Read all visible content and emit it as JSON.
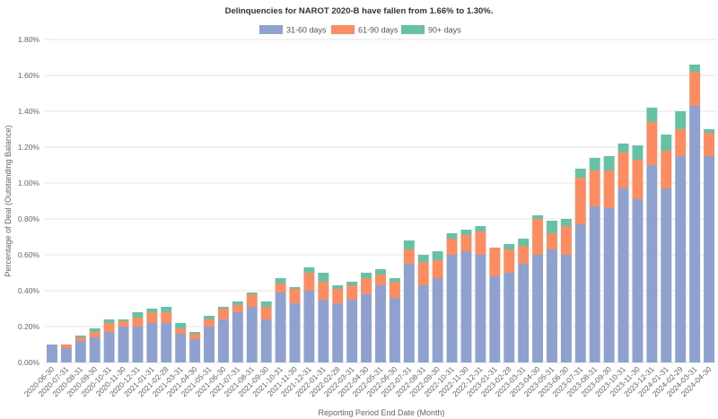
{
  "chart_data": {
    "type": "bar",
    "stacked": true,
    "title": "Delinquencies for NAROT 2020-B have fallen from 1.66% to 1.30%.",
    "xlabel": "Reporting Period End Date (Month)",
    "ylabel": "Percentage of Deal (Outstanding Balance)",
    "ylim": [
      0,
      1.8
    ],
    "yticks": [
      "0.00%",
      "0.20%",
      "0.40%",
      "0.60%",
      "0.80%",
      "1.00%",
      "1.20%",
      "1.40%",
      "1.60%",
      "1.80%"
    ],
    "grid": true,
    "legend_position": "top-center",
    "categories": [
      "2020-06-30",
      "2020-07-31",
      "2020-08-31",
      "2020-09-30",
      "2020-10-31",
      "2020-11-30",
      "2020-12-31",
      "2021-01-31",
      "2021-02-28",
      "2021-03-31",
      "2021-04-30",
      "2021-05-31",
      "2021-06-30",
      "2021-07-31",
      "2021-08-31",
      "2021-09-30",
      "2021-10-31",
      "2021-11-30",
      "2021-12-31",
      "2022-01-31",
      "2022-02-28",
      "2022-03-31",
      "2022-04-30",
      "2022-05-31",
      "2022-06-30",
      "2022-07-31",
      "2022-08-31",
      "2022-09-30",
      "2022-10-31",
      "2022-11-30",
      "2022-12-31",
      "2023-01-31",
      "2023-02-28",
      "2023-03-31",
      "2023-04-30",
      "2023-05-31",
      "2023-06-30",
      "2023-07-31",
      "2023-08-31",
      "2023-09-30",
      "2023-10-31",
      "2023-11-30",
      "2023-12-31",
      "2024-01-31",
      "2024-02-29",
      "2024-03-31",
      "2024-04-30"
    ],
    "series": [
      {
        "name": "31-60 days",
        "color": "#8fa2cf",
        "values": [
          0.1,
          0.08,
          0.12,
          0.14,
          0.17,
          0.2,
          0.2,
          0.22,
          0.22,
          0.16,
          0.13,
          0.2,
          0.24,
          0.28,
          0.31,
          0.24,
          0.39,
          0.33,
          0.4,
          0.35,
          0.33,
          0.35,
          0.38,
          0.43,
          0.36,
          0.55,
          0.43,
          0.47,
          0.6,
          0.62,
          0.6,
          0.48,
          0.5,
          0.55,
          0.6,
          0.63,
          0.6,
          0.77,
          0.87,
          0.86,
          0.97,
          0.91,
          1.1,
          0.97,
          1.15,
          1.43,
          1.15
        ]
      },
      {
        "name": "61-90 days",
        "color": "#fc8d62",
        "values": [
          0.0,
          0.02,
          0.02,
          0.03,
          0.05,
          0.03,
          0.05,
          0.06,
          0.06,
          0.03,
          0.03,
          0.04,
          0.06,
          0.04,
          0.07,
          0.07,
          0.05,
          0.08,
          0.1,
          0.1,
          0.08,
          0.08,
          0.09,
          0.06,
          0.09,
          0.08,
          0.13,
          0.1,
          0.09,
          0.09,
          0.13,
          0.16,
          0.13,
          0.1,
          0.2,
          0.09,
          0.16,
          0.26,
          0.2,
          0.21,
          0.2,
          0.22,
          0.24,
          0.21,
          0.15,
          0.19,
          0.13
        ]
      },
      {
        "name": "90+ days",
        "color": "#66c2a5",
        "values": [
          0.0,
          0.0,
          0.01,
          0.02,
          0.02,
          0.01,
          0.03,
          0.02,
          0.03,
          0.03,
          0.01,
          0.02,
          0.01,
          0.02,
          0.01,
          0.03,
          0.03,
          0.01,
          0.03,
          0.05,
          0.02,
          0.02,
          0.03,
          0.03,
          0.02,
          0.05,
          0.04,
          0.05,
          0.03,
          0.03,
          0.03,
          0.0,
          0.03,
          0.04,
          0.02,
          0.07,
          0.04,
          0.05,
          0.07,
          0.08,
          0.05,
          0.08,
          0.08,
          0.09,
          0.1,
          0.04,
          0.02
        ]
      }
    ]
  }
}
